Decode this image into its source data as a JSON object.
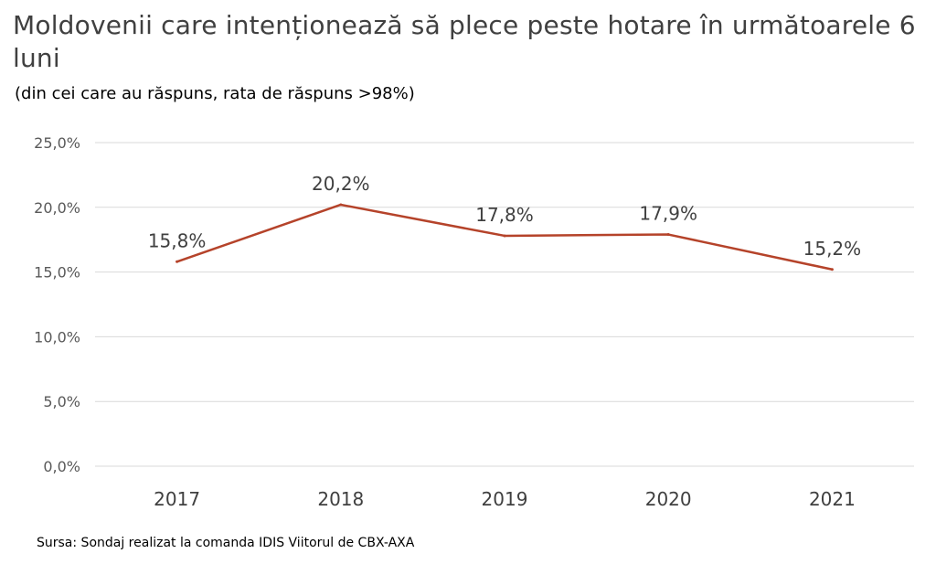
{
  "title": "Moldovenii care intenționează să plece peste hotare în următoarele 6 luni",
  "subtitle": "(din cei care au răspuns, rata de răspuns >98%)",
  "source": "Sursa: Sondaj realizat la comanda IDIS Viitorul de CBX-AXA",
  "colors": {
    "line": "#b5432a",
    "grid": "#d9d9d9"
  },
  "chart_data": {
    "type": "line",
    "title": "Moldovenii care intenționează să plece peste hotare în următoarele 6 luni",
    "subtitle": "(din cei care au răspuns, rata de răspuns >98%)",
    "xlabel": "",
    "ylabel": "",
    "categories": [
      "2017",
      "2018",
      "2019",
      "2020",
      "2021"
    ],
    "values": [
      15.8,
      20.2,
      17.8,
      17.9,
      15.2
    ],
    "data_labels": [
      "15,8%",
      "20,2%",
      "17,8%",
      "17,9%",
      "15,2%"
    ],
    "ylim": [
      0,
      25
    ],
    "yticks": [
      0,
      5,
      10,
      15,
      20,
      25
    ],
    "ytick_labels": [
      "0,0%",
      "5,0%",
      "10,0%",
      "15,0%",
      "20,0%",
      "25,0%"
    ],
    "grid": true,
    "legend": "none"
  }
}
